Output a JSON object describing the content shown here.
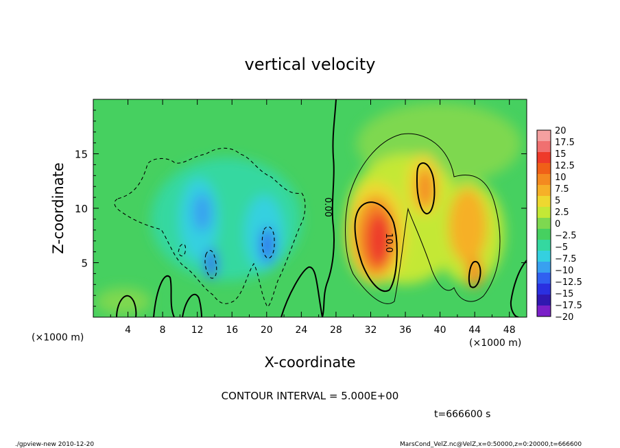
{
  "chart_data": {
    "type": "heatmap",
    "title": "vertical velocity",
    "xlabel": "X-coordinate",
    "ylabel": "Z-coordinate",
    "x_unit": "(×1000 m)",
    "y_unit": "(×1000 m)",
    "xlim": [
      0,
      50
    ],
    "ylim": [
      0,
      20
    ],
    "x_ticks": [
      4,
      8,
      12,
      16,
      20,
      24,
      28,
      32,
      36,
      40,
      44,
      48
    ],
    "y_ticks": [
      5,
      10,
      15
    ],
    "colorbar": {
      "levels": [
        20,
        17.5,
        15,
        12.5,
        10,
        7.5,
        5,
        2.5,
        0,
        -2.5,
        -5,
        -7.5,
        -10,
        -12.5,
        -15,
        -17.5,
        -20
      ],
      "labels": [
        "20",
        "17.5",
        "15",
        "12.5",
        "10",
        "7.5",
        "5",
        "2.5",
        "0",
        "−2.5",
        "−5",
        "−7.5",
        "−10",
        "−12.5",
        "−15",
        "−17.5",
        "−20"
      ],
      "colors": [
        "#f4a0a0",
        "#f07070",
        "#ee3a2a",
        "#f06018",
        "#f48a20",
        "#f6b028",
        "#eed830",
        "#c4e836",
        "#7ed850",
        "#46d060",
        "#34d8a0",
        "#34d0e0",
        "#38a0f0",
        "#3060f0",
        "#2a30e0",
        "#3018b0",
        "#7a20c8"
      ]
    },
    "contour_labels": [
      "0.00",
      "10.0"
    ],
    "contour_interval": "CONTOUR INTERVAL = 5.000E+00",
    "time": "t=666600 s",
    "cells": [
      {
        "x": 11.5,
        "z": 10.2,
        "v": -10
      },
      {
        "x": 13.2,
        "z": 4.8,
        "v": -12.5
      },
      {
        "x": 13.8,
        "z": 7,
        "v": -7.5
      },
      {
        "x": 20.3,
        "z": 6.2,
        "v": -12.5
      },
      {
        "x": 19.5,
        "z": 9.5,
        "v": -7.5
      },
      {
        "x": 17,
        "z": 8,
        "v": -5
      },
      {
        "x": 32.8,
        "z": 7.5,
        "v": 15
      },
      {
        "x": 32,
        "z": 9,
        "v": 12.5
      },
      {
        "x": 38.6,
        "z": 12.5,
        "v": 10
      },
      {
        "x": 43.7,
        "z": 4,
        "v": 10
      },
      {
        "x": 43,
        "z": 9,
        "v": 7.5
      }
    ]
  },
  "footer": {
    "left": "./gpview-new   2010-12-20",
    "right": "MarsCond_VelZ.nc@VelZ,x=0:50000,z=0:20000,t=666600"
  }
}
